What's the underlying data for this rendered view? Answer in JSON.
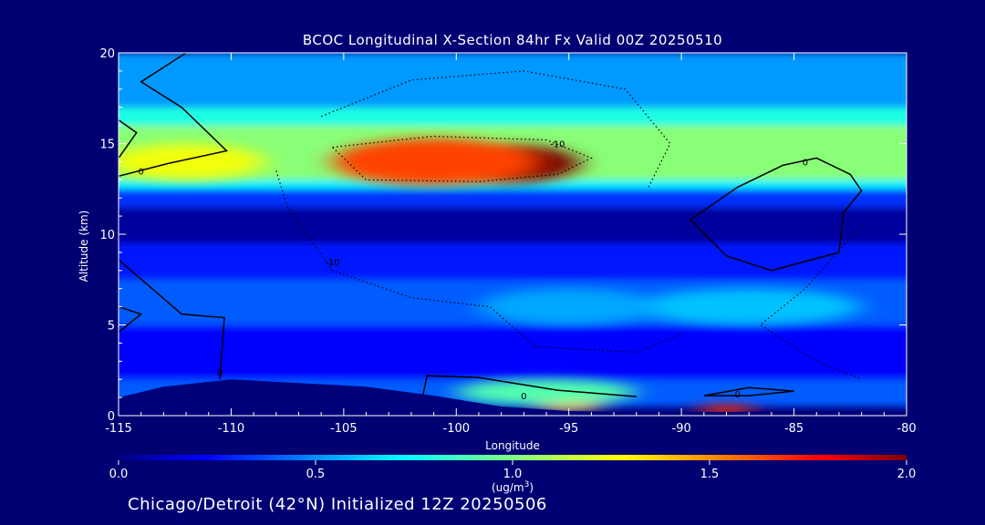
{
  "chart_data": {
    "type": "heatmap",
    "title": "BCOC Longitudinal X-Section 84hr  Fx Valid 00Z 20250510",
    "xlabel": "Longitude",
    "ylabel": "Altitude (km)",
    "xlim": [
      -115,
      -80
    ],
    "ylim": [
      0,
      20
    ],
    "xticks": [
      -115,
      -110,
      -105,
      -100,
      -95,
      -90,
      -85,
      -80
    ],
    "yticks": [
      0,
      5,
      10,
      15,
      20
    ],
    "colorbar": {
      "min": 0.0,
      "max": 2.0,
      "ticks": [
        "0.0",
        "0.5",
        "1.0",
        "1.5",
        "2.0"
      ],
      "unit_prefix": "(ug/m",
      "unit_sup": "3",
      "unit_suffix": ")",
      "colormap": "jet"
    },
    "layers": [
      {
        "z0": 0.5,
        "z1": 2.0,
        "value": 0.4
      },
      {
        "z0": 2.0,
        "z1": 5.0,
        "value": 0.22
      },
      {
        "z0": 5.0,
        "z1": 7.5,
        "value": 0.4
      },
      {
        "z0": 7.5,
        "z1": 9.5,
        "value": 0.26
      },
      {
        "z0": 9.5,
        "z1": 11.5,
        "value": 0.05
      },
      {
        "z0": 11.5,
        "z1": 12.5,
        "value": 0.32
      },
      {
        "z0": 12.5,
        "z1": 13.0,
        "value": 0.7
      },
      {
        "z0": 13.0,
        "z1": 16.0,
        "value": 1.02
      },
      {
        "z0": 16.0,
        "z1": 17.0,
        "value": 0.78
      },
      {
        "z0": 17.0,
        "z1": 20.0,
        "value": 0.52
      }
    ],
    "hotspots": [
      {
        "lon": -98.0,
        "alt": 13.9,
        "value": 2.0,
        "lon_halfwidth": 3.5,
        "alt_halfwidth": 1.1
      },
      {
        "lon": -101.0,
        "alt": 14.0,
        "value": 1.65,
        "lon_halfwidth": 4.5,
        "alt_halfwidth": 1.3
      },
      {
        "lon": -95.0,
        "alt": 0.7,
        "value": 1.45,
        "lon_halfwidth": 1.5,
        "alt_halfwidth": 0.5
      },
      {
        "lon": -88.0,
        "alt": 0.3,
        "value": 1.7,
        "lon_halfwidth": 1.3,
        "alt_halfwidth": 0.3
      },
      {
        "lon": -96.0,
        "alt": 1.3,
        "value": 0.9,
        "lon_halfwidth": 4.0,
        "alt_halfwidth": 0.7
      },
      {
        "lon": -87.0,
        "alt": 6.0,
        "value": 0.6,
        "lon_halfwidth": 5.0,
        "alt_halfwidth": 1.0
      },
      {
        "lon": -95.0,
        "alt": 6.0,
        "value": 0.55,
        "lon_halfwidth": 4.0,
        "alt_halfwidth": 1.0
      },
      {
        "lon": -112.0,
        "alt": 14.0,
        "value": 1.25,
        "lon_halfwidth": 3.5,
        "alt_halfwidth": 1.0
      }
    ],
    "terrain": [
      {
        "lon": -115.0,
        "alt": 1.0
      },
      {
        "lon": -113.0,
        "alt": 1.6
      },
      {
        "lon": -110.0,
        "alt": 2.0
      },
      {
        "lon": -107.0,
        "alt": 1.8
      },
      {
        "lon": -104.0,
        "alt": 1.6
      },
      {
        "lon": -101.0,
        "alt": 1.1
      },
      {
        "lon": -98.0,
        "alt": 0.5
      },
      {
        "lon": -95.0,
        "alt": 0.25
      },
      {
        "lon": -92.0,
        "alt": 0.2
      },
      {
        "lon": -88.0,
        "alt": 0.2
      },
      {
        "lon": -84.0,
        "alt": 0.25
      },
      {
        "lon": -80.0,
        "alt": 0.2
      }
    ],
    "contours": [
      {
        "label": "0",
        "style": "solid",
        "label_at": {
          "lon": -114.0,
          "alt": 13.5
        },
        "points": [
          [
            -115,
            13.2
          ],
          [
            -112.8,
            13.9
          ],
          [
            -110.2,
            14.6
          ],
          [
            -112.2,
            17.0
          ],
          [
            -114.0,
            18.4
          ],
          [
            -112.0,
            20.0
          ]
        ]
      },
      {
        "label": "",
        "style": "solid",
        "points": [
          [
            -115,
            14.2
          ],
          [
            -114.2,
            15.6
          ],
          [
            -115,
            16.3
          ]
        ]
      },
      {
        "label": "0",
        "style": "solid",
        "label_at": {
          "lon": -84.5,
          "alt": 14.0
        },
        "points": [
          [
            -85.5,
            13.8
          ],
          [
            -84.0,
            14.2
          ],
          [
            -82.5,
            13.3
          ],
          [
            -82.0,
            12.4
          ],
          [
            -82.8,
            11.2
          ],
          [
            -83.0,
            9.0
          ],
          [
            -86.0,
            8.0
          ],
          [
            -88.0,
            8.8
          ],
          [
            -89.6,
            10.8
          ],
          [
            -87.5,
            12.6
          ],
          [
            -85.5,
            13.8
          ]
        ]
      },
      {
        "label": "0",
        "style": "solid",
        "label_at": {
          "lon": -110.5,
          "alt": 2.4
        },
        "points": [
          [
            -115,
            8.6
          ],
          [
            -112.2,
            5.6
          ],
          [
            -110.3,
            5.4
          ],
          [
            -110.5,
            2.0
          ]
        ]
      },
      {
        "label": "",
        "style": "solid",
        "points": [
          [
            -115,
            6.0
          ],
          [
            -114.0,
            5.6
          ],
          [
            -115,
            4.6
          ]
        ]
      },
      {
        "label": "0",
        "style": "solid",
        "label_at": {
          "lon": -97.0,
          "alt": 1.1
        },
        "points": [
          [
            -101.5,
            1.0
          ],
          [
            -101.3,
            2.2
          ],
          [
            -99.0,
            2.1
          ],
          [
            -95.5,
            1.4
          ],
          [
            -92.0,
            1.05
          ]
        ]
      },
      {
        "label": "0",
        "style": "solid",
        "label_at": {
          "lon": -87.5,
          "alt": 1.2
        },
        "points": [
          [
            -89.0,
            1.1
          ],
          [
            -87.0,
            1.55
          ],
          [
            -85.0,
            1.35
          ],
          [
            -87.0,
            1.1
          ],
          [
            -89.0,
            1.1
          ]
        ]
      },
      {
        "label": "-10",
        "style": "dotted",
        "label_at": {
          "lon": -95.5,
          "alt": 15.0
        },
        "points": [
          [
            -105.5,
            14.8
          ],
          [
            -101.0,
            15.4
          ],
          [
            -96.0,
            15.2
          ],
          [
            -94.0,
            14.2
          ],
          [
            -95.5,
            13.3
          ],
          [
            -99.0,
            12.9
          ],
          [
            -104.0,
            13.0
          ],
          [
            -105.5,
            14.8
          ]
        ]
      },
      {
        "label": "-10",
        "style": "dotted",
        "label_at": {
          "lon": -105.5,
          "alt": 8.5
        },
        "points": [
          [
            -108.0,
            13.5
          ],
          [
            -107.5,
            11.5
          ],
          [
            -105.5,
            8.0
          ],
          [
            -102.0,
            6.5
          ],
          [
            -98.5,
            6.0
          ],
          [
            -96.5,
            3.8
          ],
          [
            -92.0,
            3.5
          ],
          [
            -90.0,
            4.5
          ]
        ]
      },
      {
        "label": "",
        "style": "dotted",
        "points": [
          [
            -106.0,
            16.5
          ],
          [
            -102.0,
            18.5
          ],
          [
            -97.0,
            19.0
          ],
          [
            -92.5,
            18.0
          ],
          [
            -90.5,
            15.0
          ],
          [
            -91.5,
            12.5
          ]
        ]
      },
      {
        "label": "",
        "style": "dotted",
        "points": [
          [
            -82.0,
            10.5
          ],
          [
            -84.5,
            7.0
          ],
          [
            -86.5,
            5.0
          ],
          [
            -84.0,
            3.0
          ],
          [
            -82.0,
            2.0
          ]
        ]
      }
    ]
  },
  "footer_text": "Chicago/Detroit (42°N) Initialized 12Z 20250506"
}
